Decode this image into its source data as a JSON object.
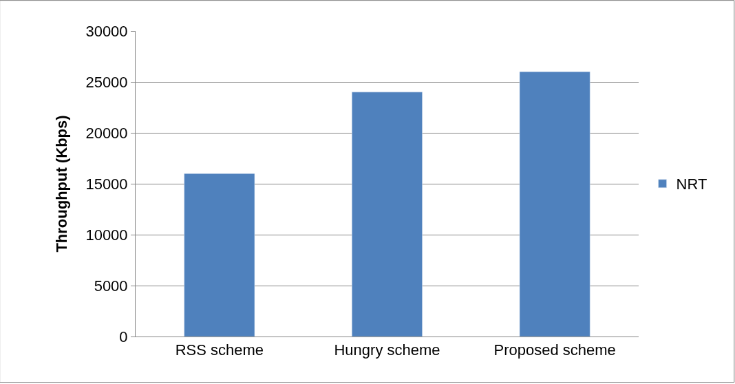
{
  "chart_data": {
    "type": "bar",
    "ylabel": "Throughput (Kbps)",
    "categories": [
      "RSS scheme",
      "Hungry scheme",
      "Proposed scheme"
    ],
    "series": [
      {
        "name": "NRT",
        "color": "#4f81bd",
        "values": [
          16000,
          24000,
          26000
        ]
      }
    ],
    "ylim": [
      0,
      30000
    ],
    "yticks": [
      0,
      5000,
      10000,
      15000,
      20000,
      25000,
      30000
    ],
    "grid": "y",
    "legend": "right"
  }
}
